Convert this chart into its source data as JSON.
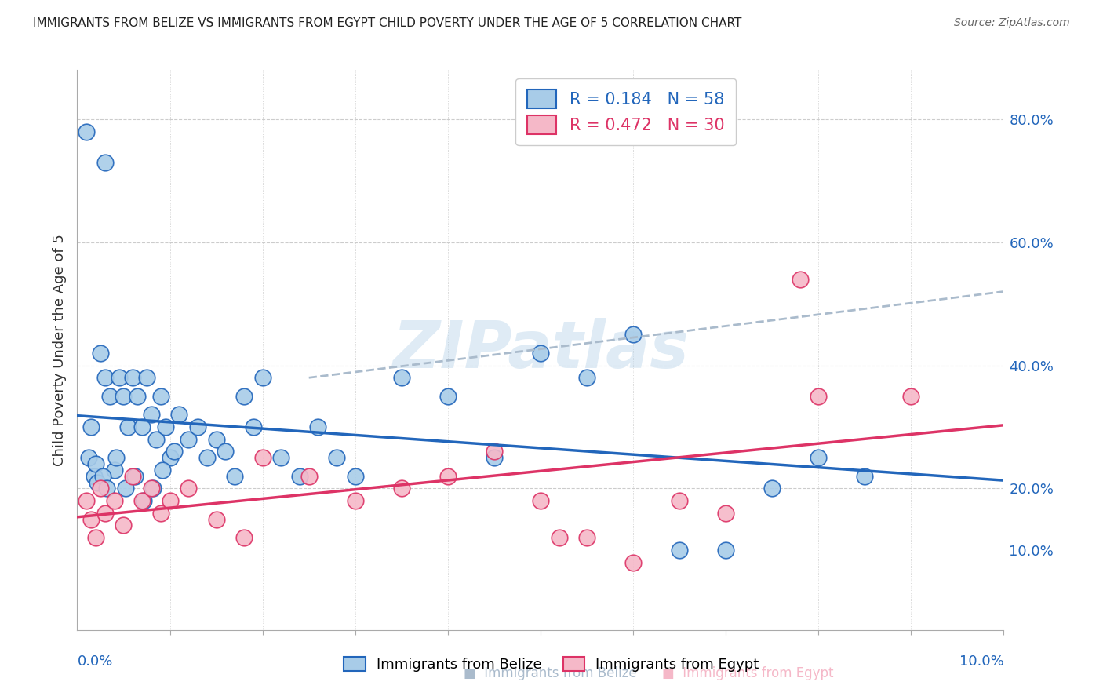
{
  "title": "IMMIGRANTS FROM BELIZE VS IMMIGRANTS FROM EGYPT CHILD POVERTY UNDER THE AGE OF 5 CORRELATION CHART",
  "source": "Source: ZipAtlas.com",
  "ylabel": "Child Poverty Under the Age of 5",
  "right_yaxis_labels": [
    "80.0%",
    "60.0%",
    "40.0%",
    "20.0%",
    "10.0%"
  ],
  "right_yaxis_values": [
    80.0,
    60.0,
    40.0,
    20.0,
    10.0
  ],
  "legend_belize": "R = 0.184   N = 58",
  "legend_egypt": "R = 0.472   N = 30",
  "belize_color": "#a8cce8",
  "egypt_color": "#f5b8c8",
  "belize_line_color": "#2266bb",
  "egypt_line_color": "#dd3366",
  "dashed_line_color": "#aabbcc",
  "watermark": "ZIPatlas",
  "belize_x": [
    0.1,
    0.3,
    0.15,
    0.12,
    0.18,
    0.22,
    0.25,
    0.3,
    0.35,
    0.4,
    0.45,
    0.5,
    0.55,
    0.6,
    0.65,
    0.7,
    0.75,
    0.8,
    0.85,
    0.9,
    0.95,
    1.0,
    1.1,
    1.2,
    1.3,
    1.4,
    1.5,
    1.6,
    1.7,
    1.8,
    1.9,
    2.0,
    2.2,
    2.4,
    2.6,
    2.8,
    3.0,
    3.5,
    4.0,
    4.5,
    5.0,
    5.5,
    6.0,
    6.5,
    7.0,
    7.5,
    8.0,
    8.5,
    0.2,
    0.28,
    0.32,
    0.42,
    0.52,
    0.62,
    0.72,
    0.82,
    0.92,
    1.05
  ],
  "belize_y": [
    78.0,
    73.0,
    30.0,
    25.0,
    22.0,
    21.0,
    42.0,
    38.0,
    35.0,
    23.0,
    38.0,
    35.0,
    30.0,
    38.0,
    35.0,
    30.0,
    38.0,
    32.0,
    28.0,
    35.0,
    30.0,
    25.0,
    32.0,
    28.0,
    30.0,
    25.0,
    28.0,
    26.0,
    22.0,
    35.0,
    30.0,
    38.0,
    25.0,
    22.0,
    30.0,
    25.0,
    22.0,
    38.0,
    35.0,
    25.0,
    42.0,
    38.0,
    45.0,
    10.0,
    10.0,
    20.0,
    25.0,
    22.0,
    24.0,
    22.0,
    20.0,
    25.0,
    20.0,
    22.0,
    18.0,
    20.0,
    23.0,
    26.0
  ],
  "egypt_x": [
    0.1,
    0.15,
    0.2,
    0.25,
    0.3,
    0.4,
    0.5,
    0.6,
    0.7,
    0.8,
    0.9,
    1.0,
    1.2,
    1.5,
    1.8,
    2.0,
    2.5,
    3.0,
    3.5,
    4.0,
    4.5,
    5.0,
    5.5,
    6.0,
    7.0,
    8.0,
    5.2,
    6.5,
    7.8,
    9.0
  ],
  "egypt_y": [
    18.0,
    15.0,
    12.0,
    20.0,
    16.0,
    18.0,
    14.0,
    22.0,
    18.0,
    20.0,
    16.0,
    18.0,
    20.0,
    15.0,
    12.0,
    25.0,
    22.0,
    18.0,
    20.0,
    22.0,
    26.0,
    18.0,
    12.0,
    8.0,
    16.0,
    35.0,
    12.0,
    18.0,
    54.0,
    35.0
  ],
  "xlim": [
    0,
    10.0
  ],
  "ylim": [
    -3,
    88
  ],
  "xgrid_vals": [
    1.0,
    2.0,
    3.0,
    4.0,
    5.0,
    6.0,
    7.0,
    8.0,
    9.0,
    10.0
  ],
  "ygrid_vals": [
    20.0,
    40.0,
    60.0,
    80.0
  ]
}
